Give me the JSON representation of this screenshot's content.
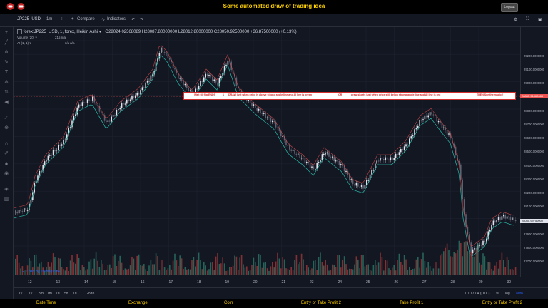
{
  "header": {
    "title": "Some automated draw of trading idea",
    "logout_label": "Logout"
  },
  "toolbar": {
    "symbol": "JP225_USD",
    "interval": "1m",
    "compare_label": "Compare",
    "indicators_label": "Indicators"
  },
  "legend": {
    "series": "forex:JP225_USD, 1, forex, Heikin Ashi",
    "ohlc": "O28024.02368089  H28087.80000000  L28012.80000000  C28050.92500000  +36.87500000 (+0.13%)",
    "volume": "Volume (20)",
    "volume_vals": "215  n/a",
    "ai": "AI (1, 1)",
    "ai_vals": "n/a  n/a"
  },
  "signal_banner": {
    "p1": "Wait till flip ENDS",
    "p2": "1",
    "p3": "DRAW just when  price is above strong angle line and AI line is green",
    "p4": "OR",
    "p5": "draw shorts just when price still below strong angle line and AI line is red",
    "p6": "THEN See the magic!!"
  },
  "price_axis": [
    "29200.0000000",
    "29100.0000000",
    "29000.0000000",
    "28900.0000000",
    "28800.0000000",
    "28700.0000000",
    "28600.0000000",
    "28500.0000000",
    "28400.0000000",
    "28300.0000000",
    "28200.0000000",
    "28100.0000000",
    "28000.0000000",
    "27900.0000000",
    "27800.0000000",
    "27700.0000000"
  ],
  "price_badges": {
    "red": "28845.91460683",
    "dark": "28050.99750000"
  },
  "time_axis": [
    "12",
    "13",
    "14",
    "15",
    "16",
    "17",
    "18",
    "19",
    "20",
    "21",
    "23",
    "24",
    "25",
    "26",
    "27",
    "28",
    "29",
    "30"
  ],
  "bottom": {
    "ranges": [
      "1y",
      "1y",
      "3m",
      "1m",
      "7d",
      "5d",
      "1d"
    ],
    "goto": "Go to...",
    "clock": "01:17:04 (UTC)",
    "pct": "%",
    "log": "log",
    "auto": "auto"
  },
  "watermark": "Chart by TradingView",
  "footer": [
    "Date Time",
    "Exchange",
    "Coin",
    "Entry or Take Profit 2",
    "Take Profit 1",
    "Entry or Take Profit 2"
  ],
  "colors": {
    "accent": "#ffd200",
    "up": "#26a69a",
    "down": "#ef5350",
    "bg": "#131722"
  }
}
